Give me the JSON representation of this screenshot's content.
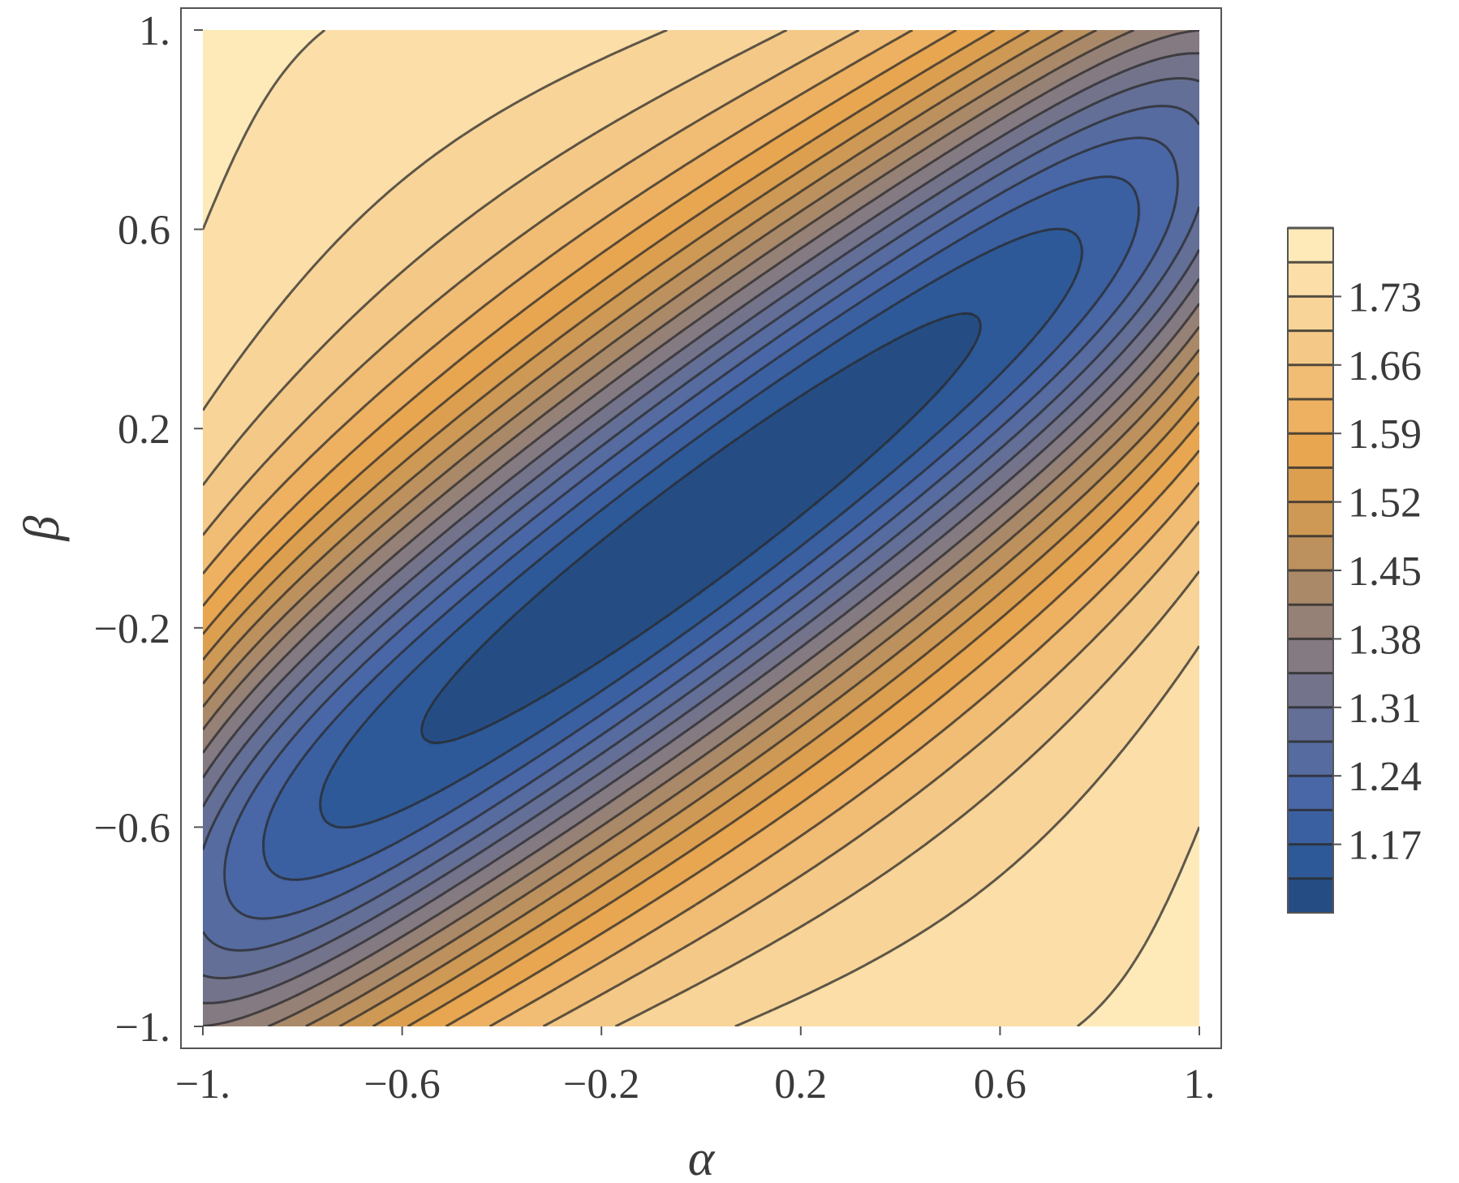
{
  "chart_data": {
    "type": "contour",
    "title": "",
    "xlabel": "α",
    "ylabel": "β",
    "xlim": [
      -1,
      1
    ],
    "ylim": [
      -1,
      1
    ],
    "x_ticks": [
      {
        "value": -1,
        "label": "−1."
      },
      {
        "value": -0.6,
        "label": "−0.6"
      },
      {
        "value": -0.2,
        "label": "−0.2"
      },
      {
        "value": 0.2,
        "label": "0.2"
      },
      {
        "value": 0.6,
        "label": "0.6"
      },
      {
        "value": 1,
        "label": "1."
      }
    ],
    "y_ticks": [
      {
        "value": -1,
        "label": "−1."
      },
      {
        "value": -0.6,
        "label": "−0.6"
      },
      {
        "value": -0.2,
        "label": "−0.2"
      },
      {
        "value": 0.2,
        "label": "0.2"
      },
      {
        "value": 0.6,
        "label": "0.6"
      },
      {
        "value": 1,
        "label": "1."
      }
    ],
    "z_min": 1.1,
    "z_max": 1.8,
    "contour_step": 0.035,
    "colorbar": {
      "ticks": [
        {
          "value": 1.17,
          "label": "1.17"
        },
        {
          "value": 1.24,
          "label": "1.24"
        },
        {
          "value": 1.31,
          "label": "1.31"
        },
        {
          "value": 1.38,
          "label": "1.38"
        },
        {
          "value": 1.45,
          "label": "1.45"
        },
        {
          "value": 1.52,
          "label": "1.52"
        },
        {
          "value": 1.59,
          "label": "1.59"
        },
        {
          "value": 1.66,
          "label": "1.66"
        },
        {
          "value": 1.73,
          "label": "1.73"
        }
      ]
    },
    "colormap": [
      "#20477a",
      "#2f5b9b",
      "#4766a8",
      "#5c6d9b",
      "#75748a",
      "#938079",
      "#b48d62",
      "#d19a53",
      "#e7a44d",
      "#efb66a",
      "#f5cb8a",
      "#fadca5",
      "#fff0c0"
    ],
    "field": {
      "description": "saddle-shaped surface with a low valley along the diagonal from (-1,-0.75) to (1,0.75) and high ridges in the top-left and bottom-right corners",
      "minimum_at": [
        0,
        0
      ],
      "valley_slope": 0.75,
      "high_corners": [
        [
          -1,
          1
        ],
        [
          1,
          -1
        ]
      ]
    },
    "grid": false,
    "legend": "colorbar right"
  }
}
